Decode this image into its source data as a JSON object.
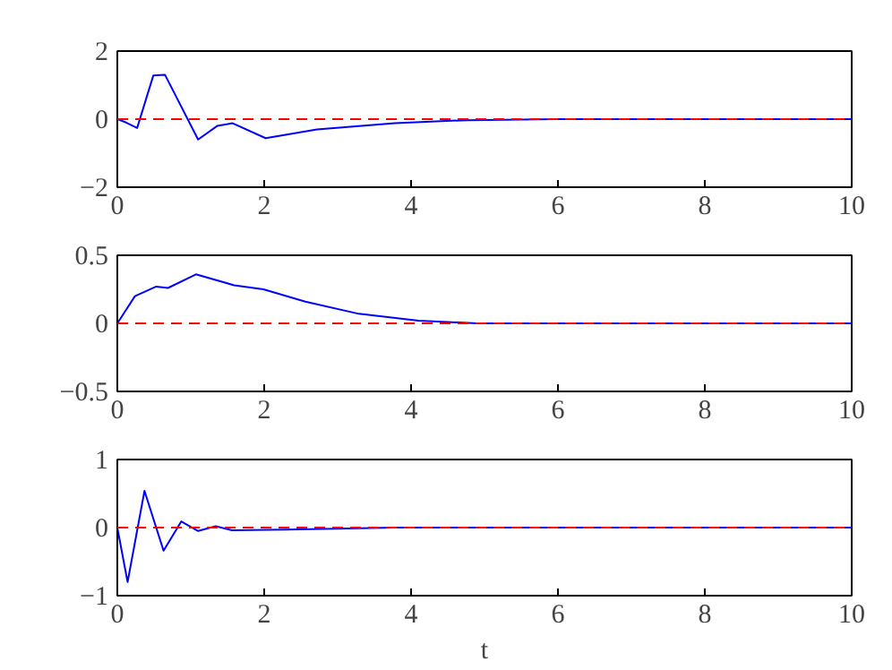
{
  "chart_data": [
    {
      "type": "line",
      "x": [
        0,
        0.12,
        0.27,
        0.49,
        0.65,
        1.1,
        1.36,
        1.57,
        2.02,
        2.72,
        3.78,
        4.76,
        6,
        8,
        10
      ],
      "series": [
        {
          "color": "#0000ff",
          "values": [
            0,
            -0.1,
            -0.26,
            1.28,
            1.3,
            -0.6,
            -0.2,
            -0.12,
            -0.56,
            -0.3,
            -0.12,
            -0.03,
            0,
            0,
            0
          ]
        }
      ],
      "xlim": [
        0,
        10
      ],
      "ylim": [
        -2,
        2
      ],
      "xticks": [
        0,
        2,
        4,
        6,
        8,
        10
      ],
      "yticks": [
        -2,
        0,
        2
      ],
      "ref_lines": [
        {
          "axis": "y",
          "value": 0,
          "color": "#ff0000",
          "line_style": "dashed"
        }
      ],
      "grid": false,
      "line_style": "solid"
    },
    {
      "type": "line",
      "x": [
        0,
        0.24,
        0.53,
        0.69,
        1.07,
        1.59,
        1.99,
        2.56,
        3.29,
        4.1,
        4.9,
        6,
        8,
        10
      ],
      "series": [
        {
          "color": "#0000ff",
          "values": [
            0,
            0.2,
            0.27,
            0.26,
            0.36,
            0.28,
            0.25,
            0.16,
            0.07,
            0.02,
            0,
            0,
            0,
            0
          ]
        }
      ],
      "xlim": [
        0,
        10
      ],
      "ylim": [
        -0.5,
        0.5
      ],
      "xticks": [
        0,
        2,
        4,
        6,
        8,
        10
      ],
      "yticks": [
        -0.5,
        0,
        0.5
      ],
      "ref_lines": [
        {
          "axis": "y",
          "value": 0,
          "color": "#ff0000",
          "line_style": "dashed"
        }
      ],
      "grid": false,
      "line_style": "solid"
    },
    {
      "type": "line",
      "x": [
        0,
        0.14,
        0.37,
        0.63,
        0.87,
        1.1,
        1.34,
        1.56,
        2.3,
        3.8,
        6,
        8,
        10
      ],
      "series": [
        {
          "color": "#0000ff",
          "values": [
            0,
            -0.8,
            0.54,
            -0.34,
            0.09,
            -0.05,
            0.02,
            -0.04,
            -0.03,
            0,
            0,
            0,
            0
          ]
        }
      ],
      "xlim": [
        0,
        10
      ],
      "ylim": [
        -1,
        1
      ],
      "xticks": [
        0,
        2,
        4,
        6,
        8,
        10
      ],
      "yticks": [
        -1,
        0,
        1
      ],
      "xlabel": "t",
      "ref_lines": [
        {
          "axis": "y",
          "value": 0,
          "color": "#ff0000",
          "line_style": "dashed"
        }
      ],
      "grid": false,
      "line_style": "solid"
    }
  ]
}
